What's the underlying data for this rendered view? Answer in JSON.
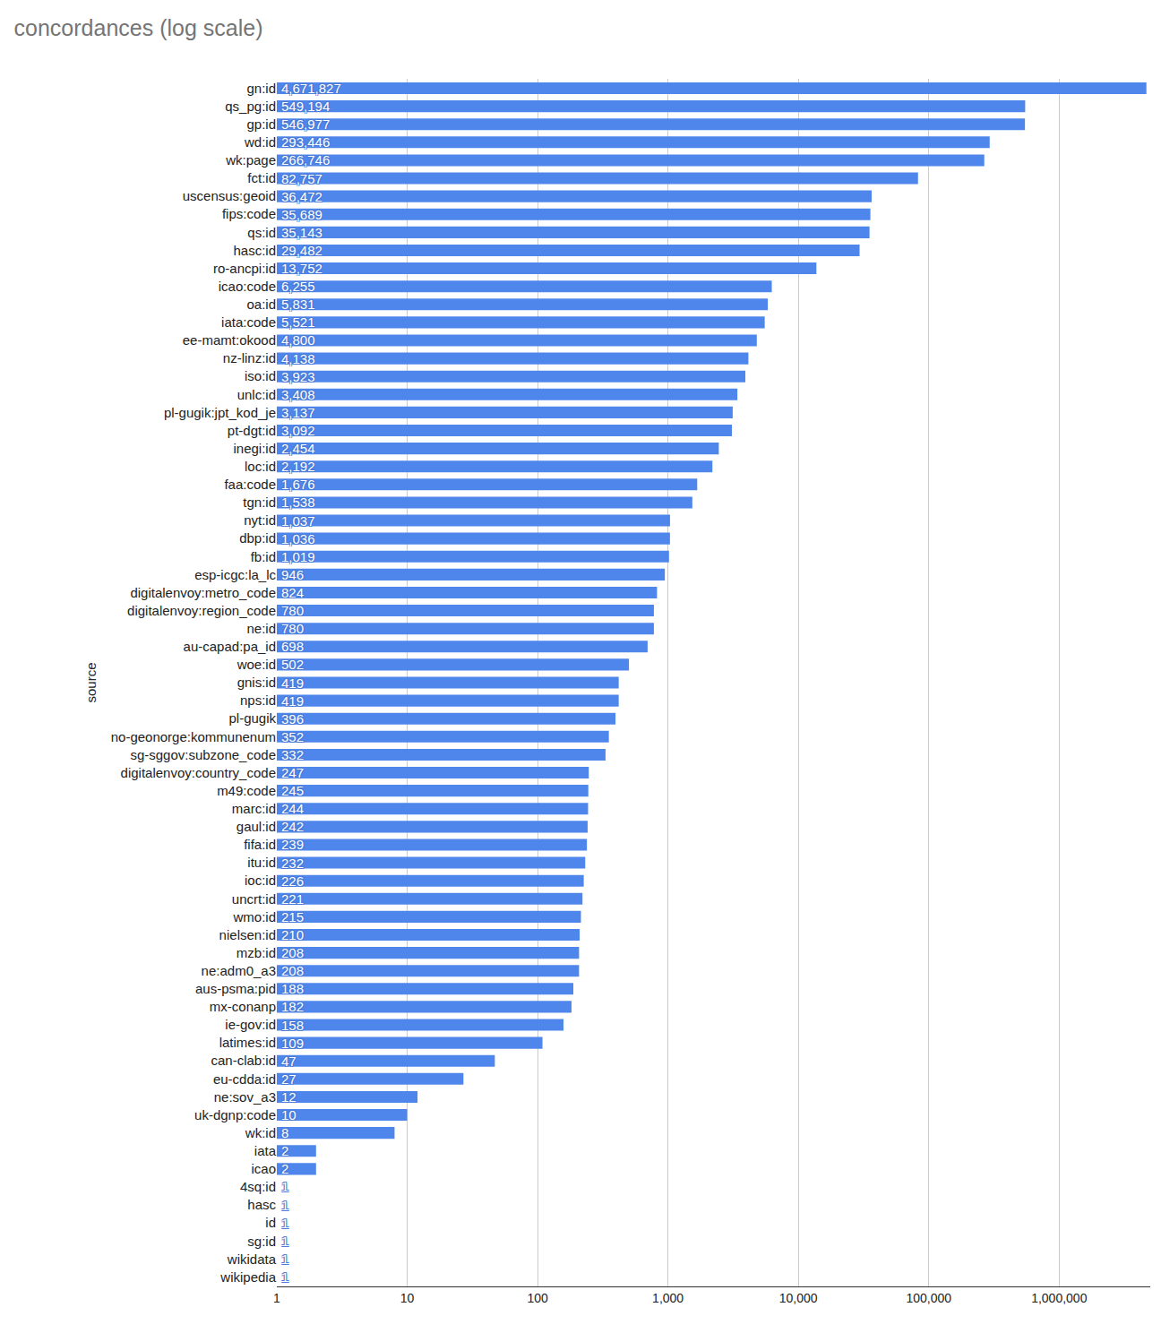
{
  "chart_data": {
    "type": "bar",
    "orientation": "horizontal",
    "title": "concordances (log scale)",
    "y_label": "source",
    "log": "x",
    "grid": true,
    "data_labels": true,
    "color": "#4f86ec",
    "categories": [
      "gn:id",
      "qs_pg:id",
      "gp:id",
      "wd:id",
      "wk:page",
      "fct:id",
      "uscensus:geoid",
      "fips:code",
      "qs:id",
      "hasc:id",
      "ro-ancpi:id",
      "icao:code",
      "oa:id",
      "iata:code",
      "ee-mamt:okood",
      "nz-linz:id",
      "iso:id",
      "unlc:id",
      "pl-gugik:jpt_kod_je",
      "pt-dgt:id",
      "inegi:id",
      "loc:id",
      "faa:code",
      "tgn:id",
      "nyt:id",
      "dbp:id",
      "fb:id",
      "esp-icgc:la_lc",
      "digitalenvoy:metro_code",
      "digitalenvoy:region_code",
      "ne:id",
      "au-capad:pa_id",
      "woe:id",
      "gnis:id",
      "nps:id",
      "pl-gugik",
      "no-geonorge:kommunenum",
      "sg-sggov:subzone_code",
      "digitalenvoy:country_code",
      "m49:code",
      "marc:id",
      "gaul:id",
      "fifa:id",
      "itu:id",
      "ioc:id",
      "uncrt:id",
      "wmo:id",
      "nielsen:id",
      "mzb:id",
      "ne:adm0_a3",
      "aus-psma:pid",
      "mx-conanp",
      "ie-gov:id",
      "latimes:id",
      "can-clab:id",
      "eu-cdda:id",
      "ne:sov_a3",
      "uk-dgnp:code",
      "wk:id",
      "iata",
      "icao",
      "4sq:id",
      "hasc",
      "id",
      "sg:id",
      "wikidata",
      "wikipedia"
    ],
    "values": [
      4671827,
      549194,
      546977,
      293446,
      266746,
      82757,
      36472,
      35689,
      35143,
      29482,
      13752,
      6255,
      5831,
      5521,
      4800,
      4138,
      3923,
      3408,
      3137,
      3092,
      2454,
      2192,
      1676,
      1538,
      1037,
      1036,
      1019,
      946,
      824,
      780,
      780,
      698,
      502,
      419,
      419,
      396,
      352,
      332,
      247,
      245,
      244,
      242,
      239,
      232,
      226,
      221,
      215,
      210,
      208,
      208,
      188,
      182,
      158,
      109,
      47,
      27,
      12,
      10,
      8,
      2,
      2,
      1,
      1,
      1,
      1,
      1,
      1
    ],
    "value_labels": [
      "4,671,827",
      "549,194",
      "546,977",
      "293,446",
      "266,746",
      "82,757",
      "36,472",
      "35,689",
      "35,143",
      "29,482",
      "13,752",
      "6,255",
      "5,831",
      "5,521",
      "4,800",
      "4,138",
      "3,923",
      "3,408",
      "3,137",
      "3,092",
      "2,454",
      "2,192",
      "1,676",
      "1,538",
      "1,037",
      "1,036",
      "1,019",
      "946",
      "824",
      "780",
      "780",
      "698",
      "502",
      "419",
      "419",
      "396",
      "352",
      "332",
      "247",
      "245",
      "244",
      "242",
      "239",
      "232",
      "226",
      "221",
      "215",
      "210",
      "208",
      "208",
      "188",
      "182",
      "158",
      "109",
      "47",
      "27",
      "12",
      "10",
      "8",
      "2",
      "2",
      "1",
      "1",
      "1",
      "1",
      "1",
      "1"
    ],
    "xlim": [
      1,
      5000000
    ],
    "xticks": [
      1,
      10,
      100,
      {
        "value": 1000,
        "label": "1,000"
      },
      {
        "value": 10000,
        "label": "10,000"
      },
      {
        "value": 100000,
        "label": "100,000"
      },
      {
        "value": 1000000,
        "label": "1,000,000"
      }
    ]
  }
}
